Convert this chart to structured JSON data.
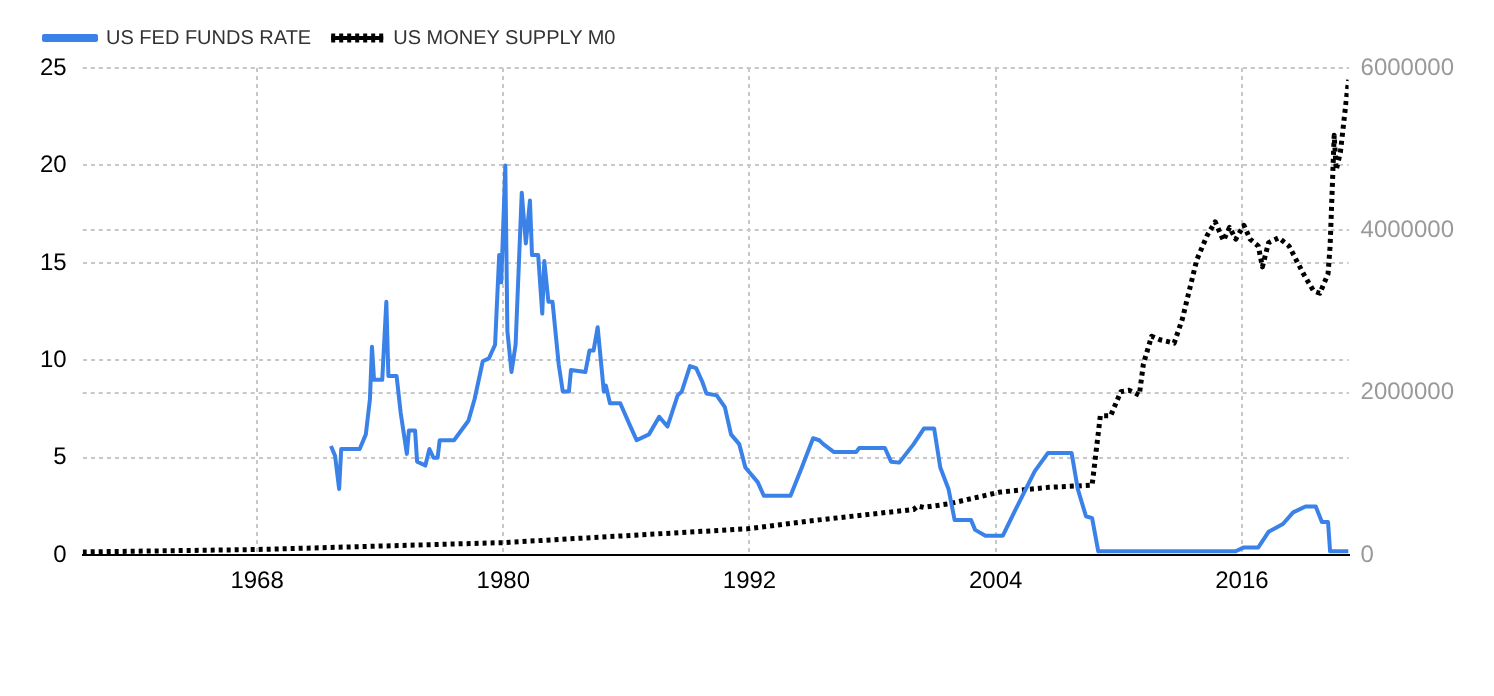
{
  "chart_data": {
    "type": "line",
    "legend": "top left",
    "grid": true,
    "marker": "none",
    "xlim": [
      1959.5,
      2021.2
    ],
    "xticks": [
      1968,
      1980,
      1992,
      2004,
      2016
    ],
    "ylim": [
      0,
      25
    ],
    "yticks": [
      0,
      5,
      10,
      15,
      20,
      25
    ],
    "y2lim": [
      0,
      6000000
    ],
    "y2ticks": [
      0,
      2000000,
      4000000,
      6000000
    ],
    "series": [
      {
        "name": "US FED FUNDS RATE",
        "color": "#3b82e8",
        "line_style": "solid",
        "x": [
          1971.6,
          1971.8,
          1972.0,
          1972.1,
          1973.0,
          1973.3,
          1973.5,
          1973.6,
          1973.7,
          1974.1,
          1974.3,
          1974.4,
          1974.8,
          1975.0,
          1975.3,
          1975.4,
          1975.7,
          1975.8,
          1976.2,
          1976.4,
          1976.6,
          1976.8,
          1976.9,
          1977.6,
          1978.3,
          1978.6,
          1979.0,
          1979.3,
          1979.6,
          1979.8,
          1979.9,
          1980.1,
          1980.2,
          1980.4,
          1980.6,
          1980.9,
          1981.1,
          1981.3,
          1981.4,
          1981.7,
          1981.9,
          1982.0,
          1982.2,
          1982.4,
          1982.7,
          1982.9,
          1983.2,
          1983.3,
          1984.0,
          1984.2,
          1984.4,
          1984.6,
          1984.9,
          1985.0,
          1985.2,
          1985.7,
          1986.2,
          1986.5,
          1987.1,
          1987.6,
          1988.0,
          1988.5,
          1988.7,
          1989.1,
          1989.4,
          1989.7,
          1989.9,
          1990.4,
          1990.8,
          1991.1,
          1991.5,
          1991.8,
          1992.4,
          1992.7,
          1994.0,
          1994.55,
          1995.1,
          1995.4,
          1995.6,
          1996.1,
          1997.2,
          1997.35,
          1998.6,
          1998.9,
          1999.3,
          2000.0,
          2000.5,
          2001.0,
          2001.3,
          2001.7,
          2002.0,
          2002.8,
          2003.0,
          2003.5,
          2004.35,
          2004.9,
          2005.9,
          2006.55,
          2007.7,
          2008.0,
          2008.4,
          2008.7,
          2009.0,
          2015.7,
          2016.1,
          2016.8,
          2017.3,
          2018.0,
          2018.5,
          2019.1,
          2019.6,
          2019.9,
          2020.2,
          2020.3,
          2021.2
        ],
        "values": [
          5.6,
          5.1,
          3.4,
          5.45,
          5.45,
          6.2,
          8.0,
          10.7,
          9.0,
          9.0,
          13.0,
          9.2,
          9.2,
          7.3,
          5.2,
          6.4,
          6.4,
          4.8,
          4.6,
          5.45,
          5.0,
          5.0,
          5.9,
          5.9,
          6.9,
          8.0,
          9.95,
          10.1,
          10.8,
          15.4,
          14.0,
          20.0,
          11.5,
          9.4,
          10.8,
          18.6,
          16.0,
          18.2,
          15.4,
          15.4,
          12.4,
          15.1,
          13.0,
          13.0,
          9.8,
          8.4,
          8.4,
          9.5,
          9.4,
          10.5,
          10.5,
          11.7,
          8.4,
          8.7,
          7.8,
          7.8,
          6.6,
          5.9,
          6.2,
          7.1,
          6.6,
          8.2,
          8.4,
          9.7,
          9.6,
          8.9,
          8.3,
          8.2,
          7.6,
          6.2,
          5.7,
          4.5,
          3.75,
          3.05,
          3.05,
          4.5,
          6.0,
          5.9,
          5.7,
          5.3,
          5.3,
          5.5,
          5.5,
          4.8,
          4.75,
          5.7,
          6.5,
          6.5,
          4.5,
          3.4,
          1.8,
          1.8,
          1.3,
          1.0,
          1.0,
          2.2,
          4.3,
          5.25,
          5.25,
          3.4,
          2.0,
          1.9,
          0.2,
          0.2,
          0.4,
          0.4,
          1.2,
          1.6,
          2.2,
          2.5,
          2.5,
          1.7,
          1.7,
          0.2,
          0.2
        ]
      },
      {
        "name": "US MONEY SUPPLY M0",
        "color": "#000000",
        "line_style": "dotted",
        "axis": "y2",
        "x": [
          1959.5,
          1968,
          1980,
          1991.9,
          1995.4,
          2000.0,
          2000.2,
          2000.5,
          2001.7,
          2004.2,
          2006.6,
          2008.7,
          2009.0,
          2009.1,
          2009.6,
          2010.1,
          2010.5,
          2011.0,
          2011.2,
          2011.6,
          2012.0,
          2012.7,
          2013.1,
          2013.8,
          2014.3,
          2014.7,
          2015.1,
          2015.4,
          2015.7,
          2016.1,
          2016.4,
          2016.8,
          2017.0,
          2017.3,
          2017.8,
          2018.3,
          2019.0,
          2019.5,
          2019.8,
          2020.2,
          2020.3,
          2020.5,
          2020.6,
          2020.8,
          2021.2
        ],
        "values": [
          40000,
          70000,
          155000,
          325000,
          435000,
          563000,
          606000,
          589000,
          632000,
          777000,
          836000,
          862000,
          1502000,
          1716000,
          1716000,
          2014000,
          2031000,
          1972000,
          2356000,
          2697000,
          2654000,
          2612000,
          2910000,
          3636000,
          3935000,
          4105000,
          3875000,
          4037000,
          3892000,
          4063000,
          3892000,
          3807000,
          3551000,
          3849000,
          3909000,
          3807000,
          3465000,
          3252000,
          3226000,
          3465000,
          3807000,
          5172000,
          4746000,
          4959000,
          5855000
        ]
      }
    ]
  }
}
